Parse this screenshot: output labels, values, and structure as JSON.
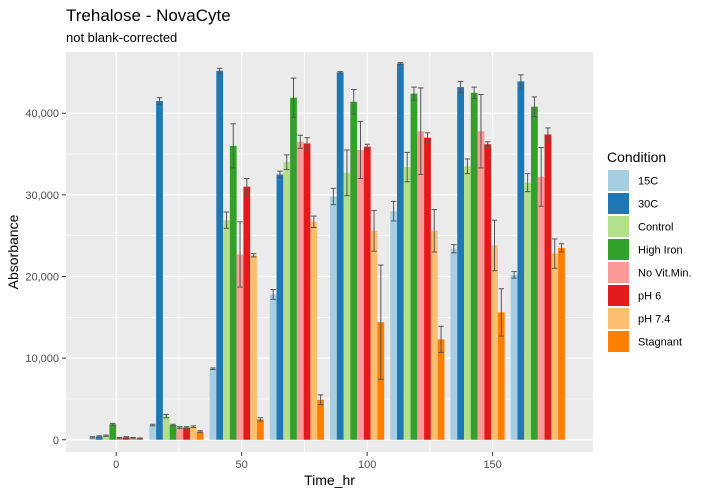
{
  "chart_data": {
    "type": "bar",
    "title": "Trehalose - NovaCyte",
    "subtitle": "not blank-corrected",
    "xlabel": "Time_hr",
    "ylabel": "Absorbance",
    "x": [
      0,
      24,
      48,
      72,
      96,
      120,
      144,
      168
    ],
    "xlim": [
      -20,
      190
    ],
    "ylim": [
      -1500,
      47500
    ],
    "xticks": [
      0,
      50,
      100,
      150
    ],
    "xtick_labels": [
      "0",
      "50",
      "100",
      "150"
    ],
    "yticks": [
      0,
      10000,
      20000,
      30000,
      40000
    ],
    "ytick_labels": [
      "0",
      "10,000",
      "20,000",
      "30,000",
      "40,000"
    ],
    "grid": true,
    "legend_title": "Condition",
    "legend_position": "right",
    "series": [
      {
        "name": "15C",
        "color": "#a6cee3",
        "values": [
          300,
          1800,
          8700,
          17800,
          29800,
          28000,
          23400,
          20200
        ],
        "errors": [
          80,
          100,
          100,
          600,
          1000,
          1200,
          500,
          400
        ]
      },
      {
        "name": "30C",
        "color": "#1f78b4",
        "values": [
          400,
          41500,
          45200,
          32500,
          45000,
          46100,
          43200,
          43900
        ],
        "errors": [
          80,
          400,
          300,
          400,
          100,
          100,
          700,
          800
        ]
      },
      {
        "name": "Control",
        "color": "#b2df8a",
        "values": [
          500,
          2900,
          26900,
          34000,
          32700,
          33400,
          33500,
          31500
        ],
        "errors": [
          80,
          200,
          1000,
          900,
          2800,
          1800,
          900,
          1100
        ]
      },
      {
        "name": "High Iron",
        "color": "#33a02c",
        "values": [
          1900,
          1800,
          36000,
          41900,
          41400,
          42400,
          42500,
          40800
        ],
        "errors": [
          100,
          100,
          2700,
          2400,
          1500,
          800,
          700,
          1200
        ]
      },
      {
        "name": "No Vit.Min.",
        "color": "#fb9a99",
        "values": [
          200,
          1500,
          22700,
          36500,
          35500,
          37800,
          37800,
          32200
        ],
        "errors": [
          80,
          100,
          4000,
          800,
          3500,
          5300,
          4500,
          3600
        ]
      },
      {
        "name": "pH 6",
        "color": "#e31a1c",
        "values": [
          300,
          1500,
          31000,
          36300,
          35900,
          37000,
          36200,
          37400
        ],
        "errors": [
          80,
          100,
          1000,
          700,
          300,
          600,
          300,
          800
        ]
      },
      {
        "name": "pH 7.4",
        "color": "#fdbf6f",
        "values": [
          200,
          1600,
          22600,
          26700,
          25600,
          25600,
          23800,
          22800
        ],
        "errors": [
          80,
          100,
          200,
          700,
          2500,
          2600,
          3100,
          1800
        ]
      },
      {
        "name": "Stagnant",
        "color": "#ff7f00",
        "values": [
          150,
          1000,
          2500,
          4900,
          14400,
          12300,
          15600,
          23500
        ],
        "errors": [
          60,
          100,
          200,
          600,
          7000,
          1600,
          2900,
          500
        ]
      }
    ]
  }
}
